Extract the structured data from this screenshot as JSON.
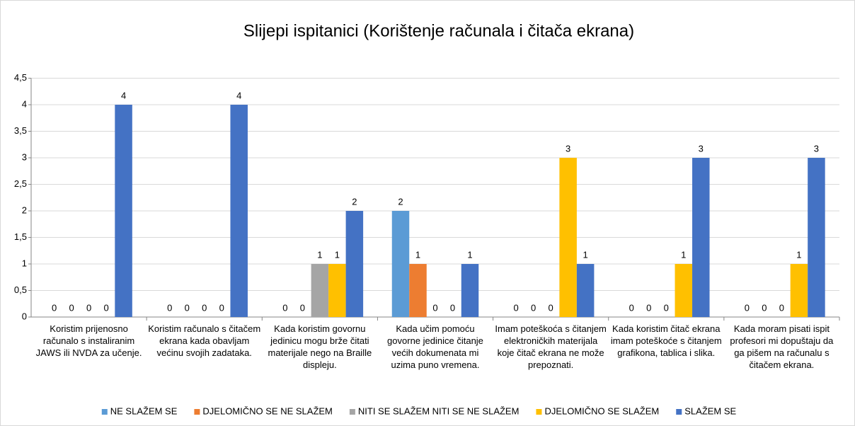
{
  "chart_data": {
    "type": "bar",
    "title": "Slijepi ispitanici (Korištenje računala i čitača ekrana)",
    "categories": [
      "Koristim prijenosno računalo s instaliranim JAWS ili  NVDA za učenje.",
      "Koristim računalo s čitačem ekrana kada obavljam većinu svojih zadataka.",
      "Kada koristim govornu jedinicu mogu brže čitati materijale nego na Braille displeju.",
      "Kada učim pomoću govorne jedinice čitanje većih dokumenata mi uzima puno vremena.",
      "Imam poteškoća s čitanjem elektroničkih materijala koje čitač ekrana ne može prepoznati.",
      "Kada koristim čitač ekrana imam poteškoće s čitanjem grafikona, tablica i slika.",
      "Kada moram pisati ispit profesori mi dopuštaju da ga pišem na računalu s čitačem ekrana."
    ],
    "series": [
      {
        "name": "NE SLAŽEM SE",
        "color": "#5b9bd5",
        "values": [
          0,
          0,
          0,
          2,
          0,
          0,
          0
        ]
      },
      {
        "name": "DJELOMIČNO SE NE SLAŽEM",
        "color": "#ed7d31",
        "values": [
          0,
          0,
          0,
          1,
          0,
          0,
          0
        ]
      },
      {
        "name": "NITI SE SLAŽEM NITI SE NE SLAŽEM",
        "color": "#a5a5a5",
        "values": [
          0,
          0,
          1,
          0,
          0,
          0,
          0
        ]
      },
      {
        "name": "DJELOMIČNO SE SLAŽEM",
        "color": "#ffc000",
        "values": [
          0,
          0,
          1,
          0,
          3,
          1,
          1
        ]
      },
      {
        "name": "SLAŽEM SE",
        "color": "#4472c4",
        "values": [
          4,
          4,
          2,
          1,
          1,
          3,
          3
        ]
      }
    ],
    "ylim": [
      0,
      4.5
    ],
    "yticks": [
      0,
      {
        "value": 0.5,
        "label": "0,5"
      },
      1,
      {
        "value": 1.5,
        "label": "1,5"
      },
      2,
      {
        "value": 2.5,
        "label": "2,5"
      },
      3,
      {
        "value": 3.5,
        "label": "3,5"
      },
      4,
      {
        "value": 4.5,
        "label": "4,5"
      }
    ],
    "grid": true,
    "legend": "bottom"
  }
}
